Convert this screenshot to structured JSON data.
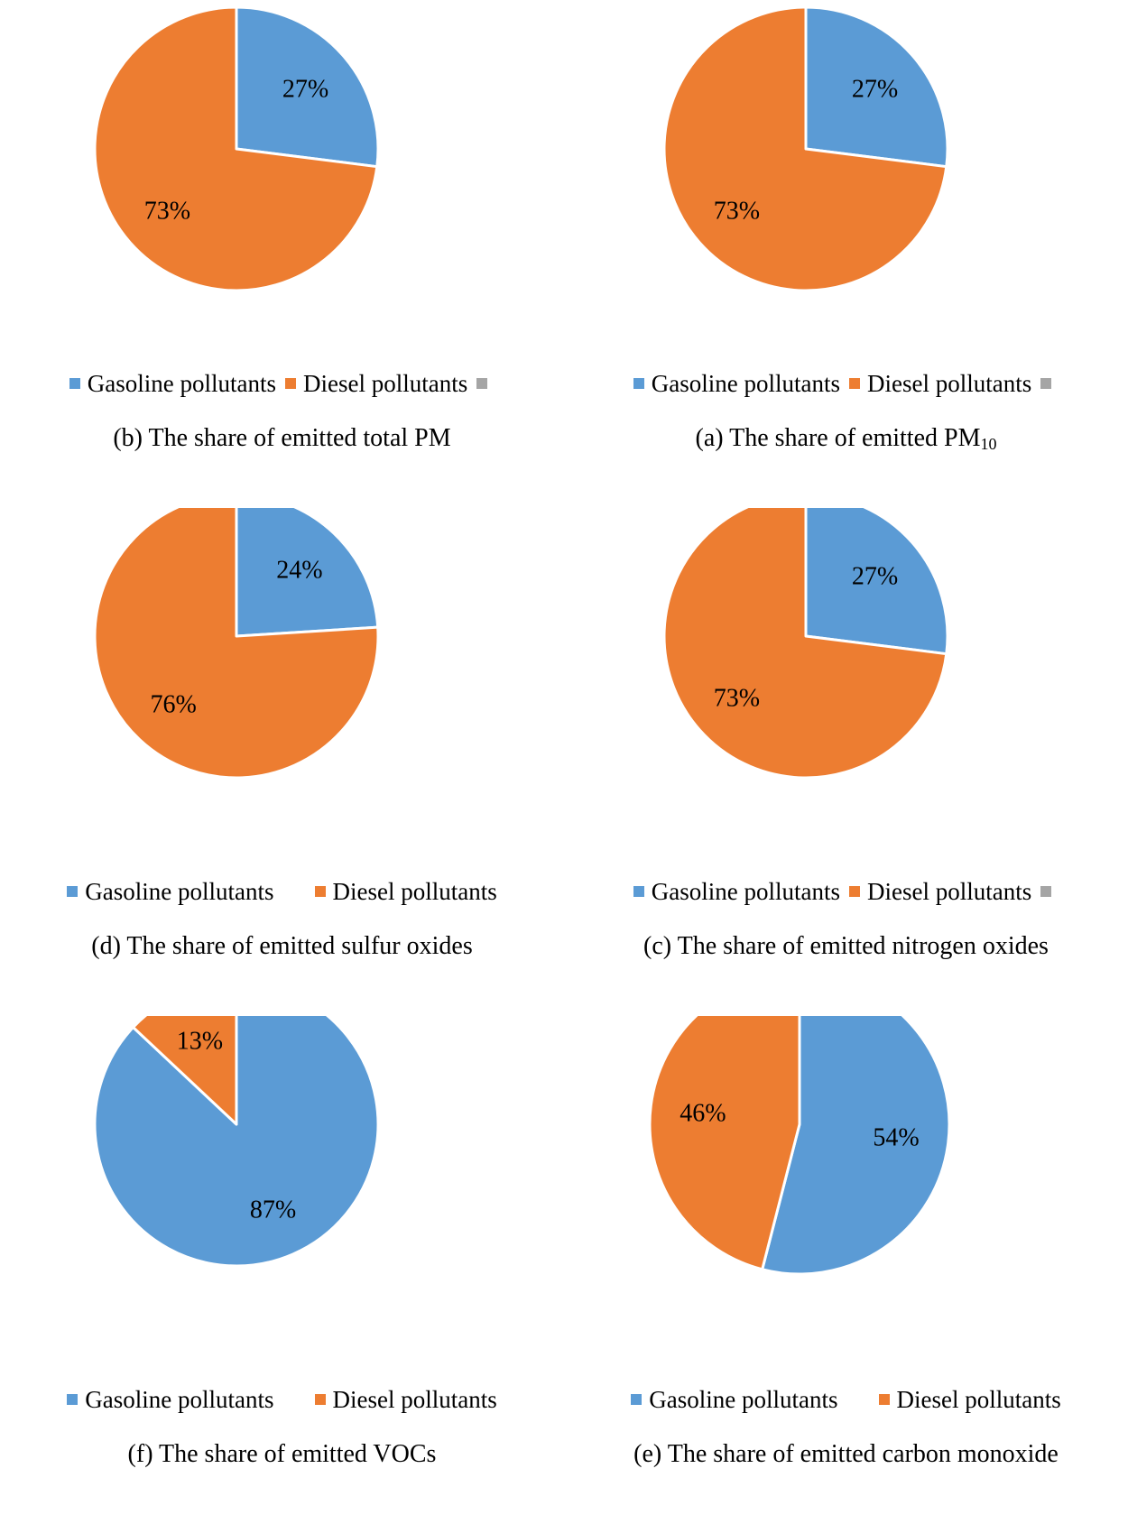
{
  "colors": {
    "gasoline": "#5B9BD5",
    "diesel": "#ED7D31",
    "empty": "#A5A5A5"
  },
  "chart_data": [
    {
      "id": "b",
      "type": "pie",
      "title": "(b) The share of emitted total PM",
      "title_sub": "",
      "slices": [
        {
          "name": "Gasoline pollutants",
          "value": 27,
          "label": "27%",
          "color": "#5B9BD5"
        },
        {
          "name": "Diesel pollutants",
          "value": 73,
          "label": "73%",
          "color": "#ED7D31"
        }
      ],
      "legend": [
        {
          "name": "Gasoline pollutants",
          "color": "#5B9BD5"
        },
        {
          "name": "Diesel pollutants",
          "color": "#ED7D31"
        },
        {
          "name": "",
          "color": "#A5A5A5"
        }
      ],
      "legend_position": "bottom"
    },
    {
      "id": "a",
      "type": "pie",
      "title": "(a) The share of emitted PM",
      "title_sub": "10",
      "slices": [
        {
          "name": "Gasoline pollutants",
          "value": 27,
          "label": "27%",
          "color": "#5B9BD5"
        },
        {
          "name": "Diesel pollutants",
          "value": 73,
          "label": "73%",
          "color": "#ED7D31"
        }
      ],
      "legend": [
        {
          "name": "Gasoline pollutants",
          "color": "#5B9BD5"
        },
        {
          "name": "Diesel pollutants",
          "color": "#ED7D31"
        },
        {
          "name": "",
          "color": "#A5A5A5"
        }
      ],
      "legend_position": "bottom"
    },
    {
      "id": "d",
      "type": "pie",
      "title": "(d) The share of emitted sulfur oxides",
      "title_sub": "",
      "slices": [
        {
          "name": "Gasoline pollutants",
          "value": 24,
          "label": "24%",
          "color": "#5B9BD5"
        },
        {
          "name": "Diesel pollutants",
          "value": 76,
          "label": "76%",
          "color": "#ED7D31"
        }
      ],
      "legend": [
        {
          "name": "Gasoline pollutants",
          "color": "#5B9BD5"
        },
        {
          "name": "Diesel pollutants",
          "color": "#ED7D31"
        }
      ],
      "legend_position": "bottom"
    },
    {
      "id": "c",
      "type": "pie",
      "title": "(c) The share of emitted nitrogen oxides",
      "title_sub": "",
      "slices": [
        {
          "name": "Gasoline pollutants",
          "value": 27,
          "label": "27%",
          "color": "#5B9BD5"
        },
        {
          "name": "Diesel pollutants",
          "value": 73,
          "label": "73%",
          "color": "#ED7D31"
        }
      ],
      "legend": [
        {
          "name": "Gasoline pollutants",
          "color": "#5B9BD5"
        },
        {
          "name": "Diesel pollutants",
          "color": "#ED7D31"
        },
        {
          "name": "",
          "color": "#A5A5A5"
        }
      ],
      "legend_position": "bottom"
    },
    {
      "id": "f",
      "type": "pie",
      "title": "(f) The share of emitted VOCs",
      "title_sub": "",
      "slices": [
        {
          "name": "Gasoline pollutants",
          "value": 87,
          "label": "87%",
          "color": "#5B9BD5"
        },
        {
          "name": "Diesel pollutants",
          "value": 13,
          "label": "13%",
          "color": "#ED7D31"
        }
      ],
      "legend": [
        {
          "name": "Gasoline pollutants",
          "color": "#5B9BD5"
        },
        {
          "name": "Diesel pollutants",
          "color": "#ED7D31"
        }
      ],
      "legend_position": "bottom"
    },
    {
      "id": "e",
      "type": "pie",
      "title": "(e) The share of emitted carbon monoxide",
      "title_sub": "",
      "slices": [
        {
          "name": "Gasoline pollutants",
          "value": 54,
          "label": "54%",
          "color": "#5B9BD5"
        },
        {
          "name": "Diesel pollutants",
          "value": 46,
          "label": "46%",
          "color": "#ED7D31"
        }
      ],
      "legend": [
        {
          "name": "Gasoline pollutants",
          "color": "#5B9BD5"
        },
        {
          "name": "Diesel pollutants",
          "color": "#ED7D31"
        }
      ],
      "legend_position": "bottom"
    }
  ]
}
